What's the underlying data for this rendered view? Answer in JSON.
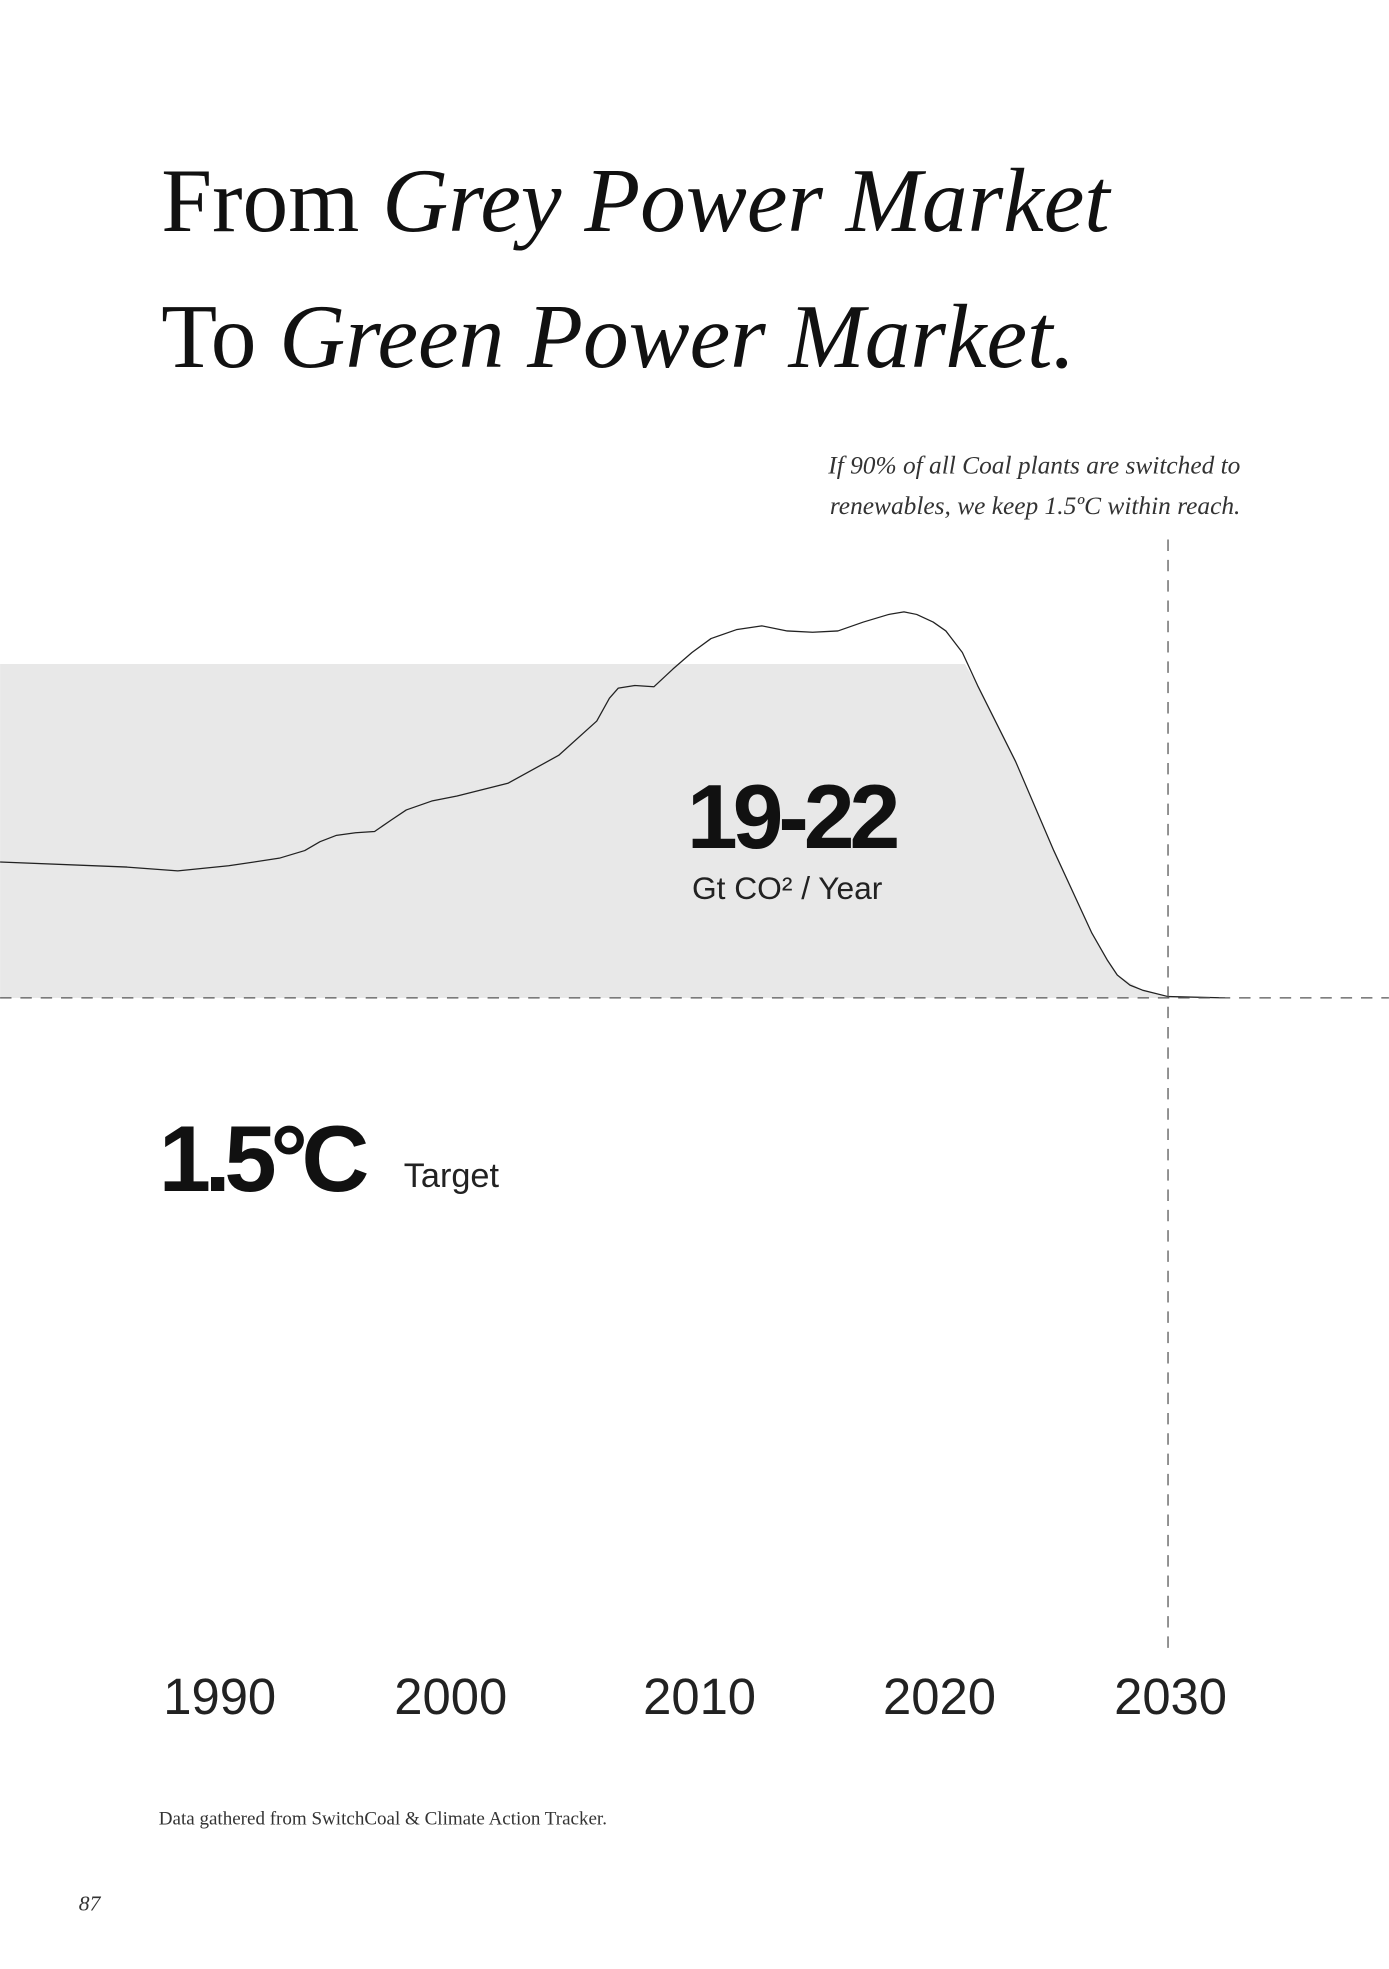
{
  "title": {
    "line1": {
      "plain": "From",
      "italic": "Grey Power Market"
    },
    "line2": {
      "plain": "To",
      "italic": "Green Power Market."
    }
  },
  "note": [
    "If 90% of all Coal plants are switched to",
    "renewables, we keep 1.5ºC within reach."
  ],
  "emissions": {
    "value": "19-22",
    "unit": "Gt CO² / Year"
  },
  "target": {
    "value": "1.5°C",
    "label": "Target"
  },
  "years": [
    "1990",
    "2000",
    "2010",
    "2020",
    "2030"
  ],
  "source": "Data gathered from SwitchCoal & Climate Action Tracker.",
  "page_number": "87"
}
